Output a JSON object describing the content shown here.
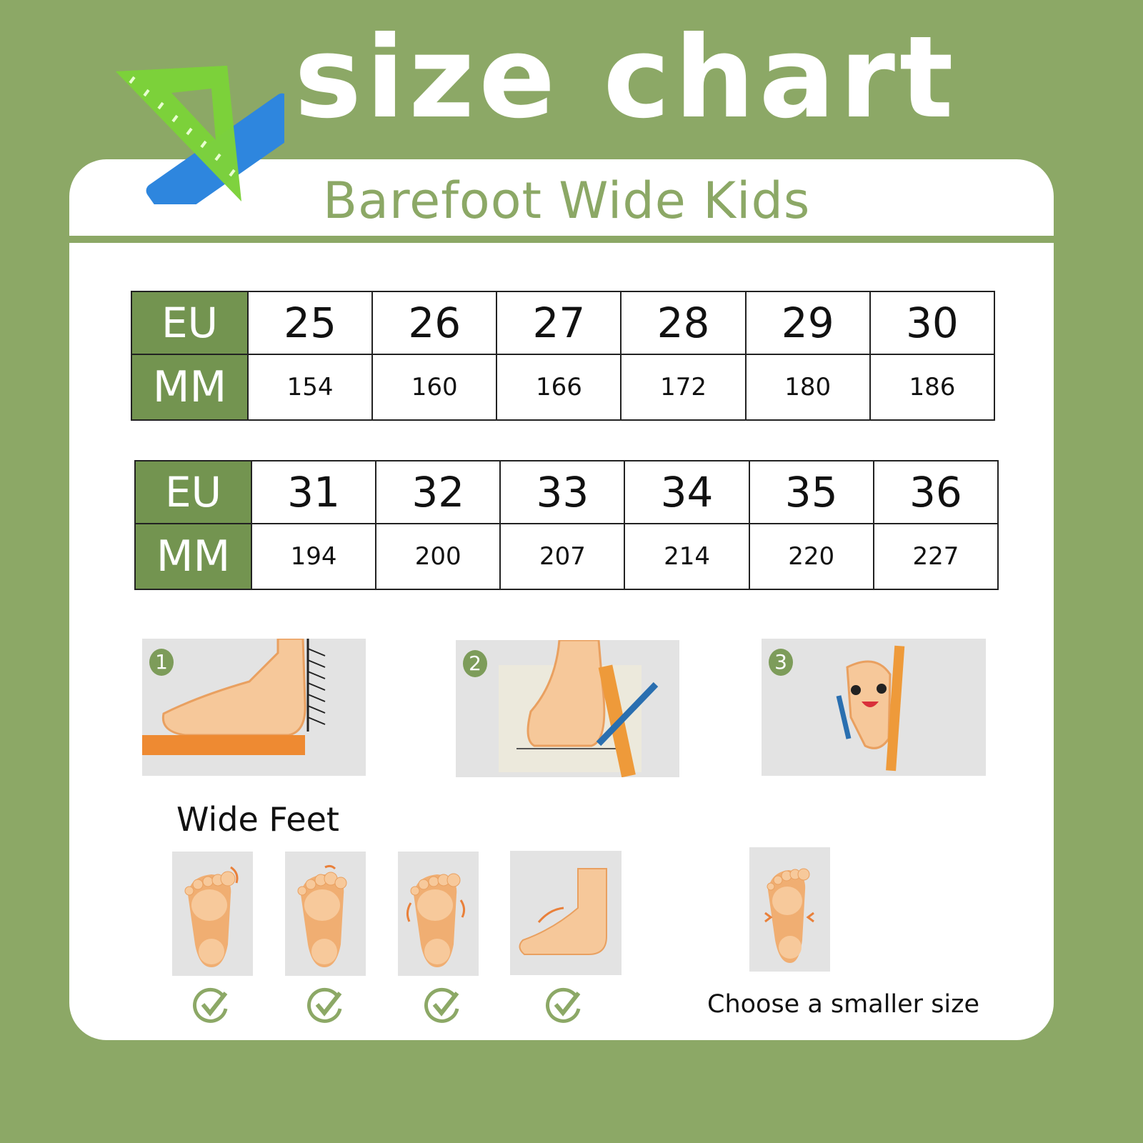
{
  "header": {
    "title": "size chart",
    "subtitle": "Barefoot Wide Kids",
    "logo_icon": "ruler-triangle-icon"
  },
  "colors": {
    "background": "#8ca866",
    "header_cell": "#739450",
    "accent": "#8ca866"
  },
  "tables": [
    {
      "eu_label": "EU",
      "mm_label": "MM",
      "eu": [
        "25",
        "26",
        "27",
        "28",
        "29",
        "30"
      ],
      "mm": [
        "154",
        "160",
        "166",
        "172",
        "180",
        "186"
      ]
    },
    {
      "eu_label": "EU",
      "mm_label": "MM",
      "eu": [
        "31",
        "32",
        "33",
        "34",
        "35",
        "36"
      ],
      "mm": [
        "194",
        "200",
        "207",
        "214",
        "220",
        "227"
      ]
    }
  ],
  "steps": [
    "1",
    "2",
    "3"
  ],
  "wide_feet": {
    "label": "Wide Feet",
    "note": "Choose a smaller size"
  }
}
